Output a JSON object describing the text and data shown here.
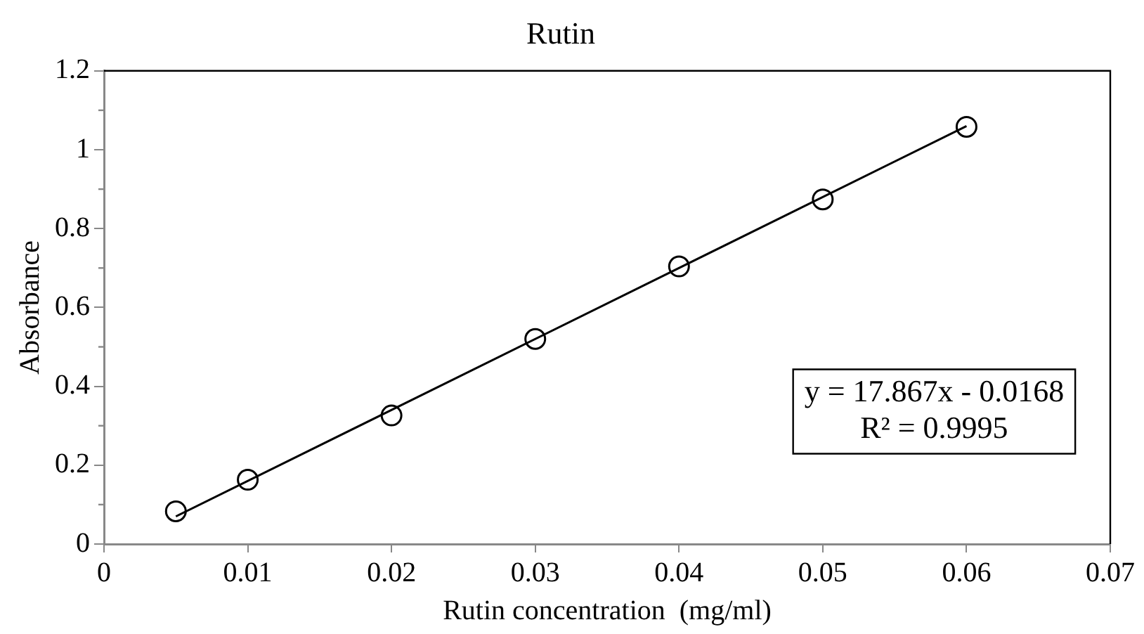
{
  "chart_data": {
    "type": "scatter",
    "title": "Rutin",
    "xlabel": "Rutin concentration  (mg/ml)",
    "ylabel": "Absorbance",
    "x": [
      0.005,
      0.01,
      0.02,
      0.03,
      0.04,
      0.05,
      0.06
    ],
    "series": [
      {
        "color": "#000000",
        "values": [
          0.083,
          0.163,
          0.326,
          0.52,
          0.704,
          0.874,
          1.058
        ]
      },
      {
        "type": "line",
        "marker": "none",
        "color": "#000000",
        "x": [
          0.005,
          0.06
        ],
        "values": [
          0.07,
          1.06
        ]
      }
    ],
    "marker": "circle",
    "line_style": "solid",
    "grid": false,
    "legend": false,
    "xlim": [
      0,
      0.07
    ],
    "xticks": [
      0,
      0.01,
      0.02,
      0.03,
      0.04,
      0.05,
      0.06,
      0.07
    ],
    "ylim": [
      0,
      1.2
    ],
    "yticks": [
      0,
      0.2,
      0.4,
      0.6,
      0.8,
      1,
      1.2
    ],
    "annotations": [
      "y = 17.867x - 0.0168\nR² = 0.9995"
    ]
  }
}
